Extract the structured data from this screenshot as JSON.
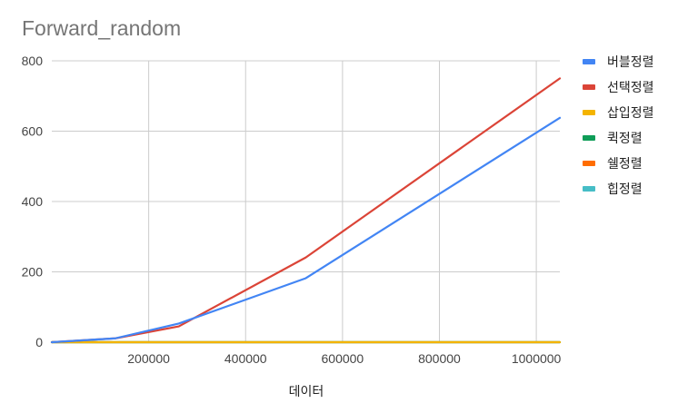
{
  "chart_data": {
    "type": "line",
    "title": "Forward_random",
    "xlabel": "데이터",
    "ylabel": "",
    "xlim": [
      0,
      1048576
    ],
    "ylim": [
      0,
      800
    ],
    "x_ticks": [
      200000,
      400000,
      600000,
      800000,
      1000000
    ],
    "x_tick_labels": [
      "200000",
      "400000",
      "600000",
      "800000",
      "1000000"
    ],
    "y_ticks": [
      0,
      200,
      400,
      600,
      800
    ],
    "y_tick_labels": [
      "0",
      "200",
      "400",
      "600",
      "800"
    ],
    "grid": true,
    "legend_position": "right",
    "x": [
      0,
      131072,
      262144,
      524288,
      1048576
    ],
    "series": [
      {
        "name": "버블정렬",
        "color": "#4285f4",
        "values": [
          0,
          11,
          53,
          182,
          638
        ]
      },
      {
        "name": "선택정렬",
        "color": "#db4437",
        "values": [
          0,
          11,
          45,
          241,
          750
        ]
      },
      {
        "name": "삽입정렬",
        "color": "#f4b400",
        "values": [
          0,
          0,
          0,
          0,
          0
        ]
      },
      {
        "name": "퀵정렬",
        "color": "#0f9d58",
        "values": [
          0,
          0,
          0,
          0,
          0
        ]
      },
      {
        "name": "쉘정렬",
        "color": "#ff6d01",
        "values": [
          0,
          0,
          0,
          0,
          0
        ]
      },
      {
        "name": "힙정렬",
        "color": "#46bdc6",
        "values": [
          0,
          0,
          0,
          0,
          0
        ]
      }
    ]
  }
}
